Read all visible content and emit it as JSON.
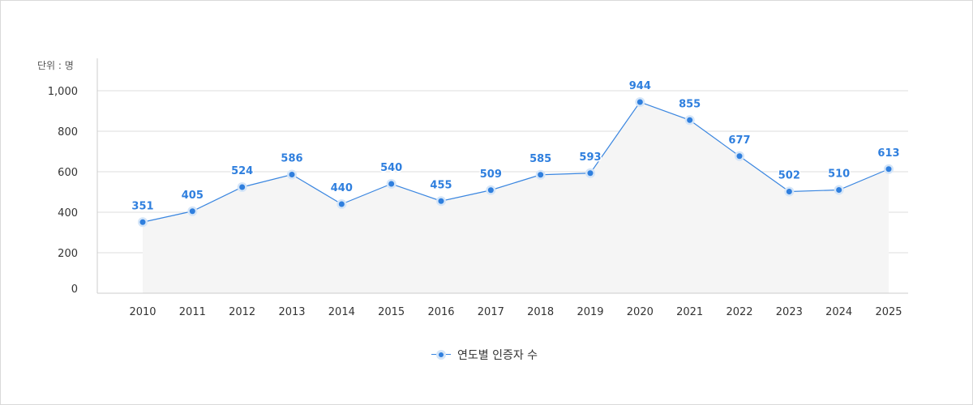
{
  "chart_data": {
    "type": "line",
    "unit_label": "단위 : 명",
    "categories": [
      "2010",
      "2011",
      "2012",
      "2013",
      "2014",
      "2015",
      "2016",
      "2017",
      "2018",
      "2019",
      "2020",
      "2021",
      "2022",
      "2023",
      "2024",
      "2025"
    ],
    "series": [
      {
        "name": "연도별 인증자 수",
        "values": [
          351,
          405,
          524,
          586,
          440,
          540,
          455,
          509,
          585,
          593,
          944,
          855,
          677,
          502,
          510,
          613
        ]
      }
    ],
    "yticks": [
      "0",
      "200",
      "400",
      "600",
      "800",
      "1,000"
    ],
    "ylim": [
      0,
      1000
    ],
    "grid": true,
    "legend_position": "bottom",
    "colors": {
      "line": "#3a86e0",
      "point": "#2f7fde",
      "label": "#2f7fde",
      "area": "#f5f5f5",
      "grid": "#dddddd"
    }
  }
}
